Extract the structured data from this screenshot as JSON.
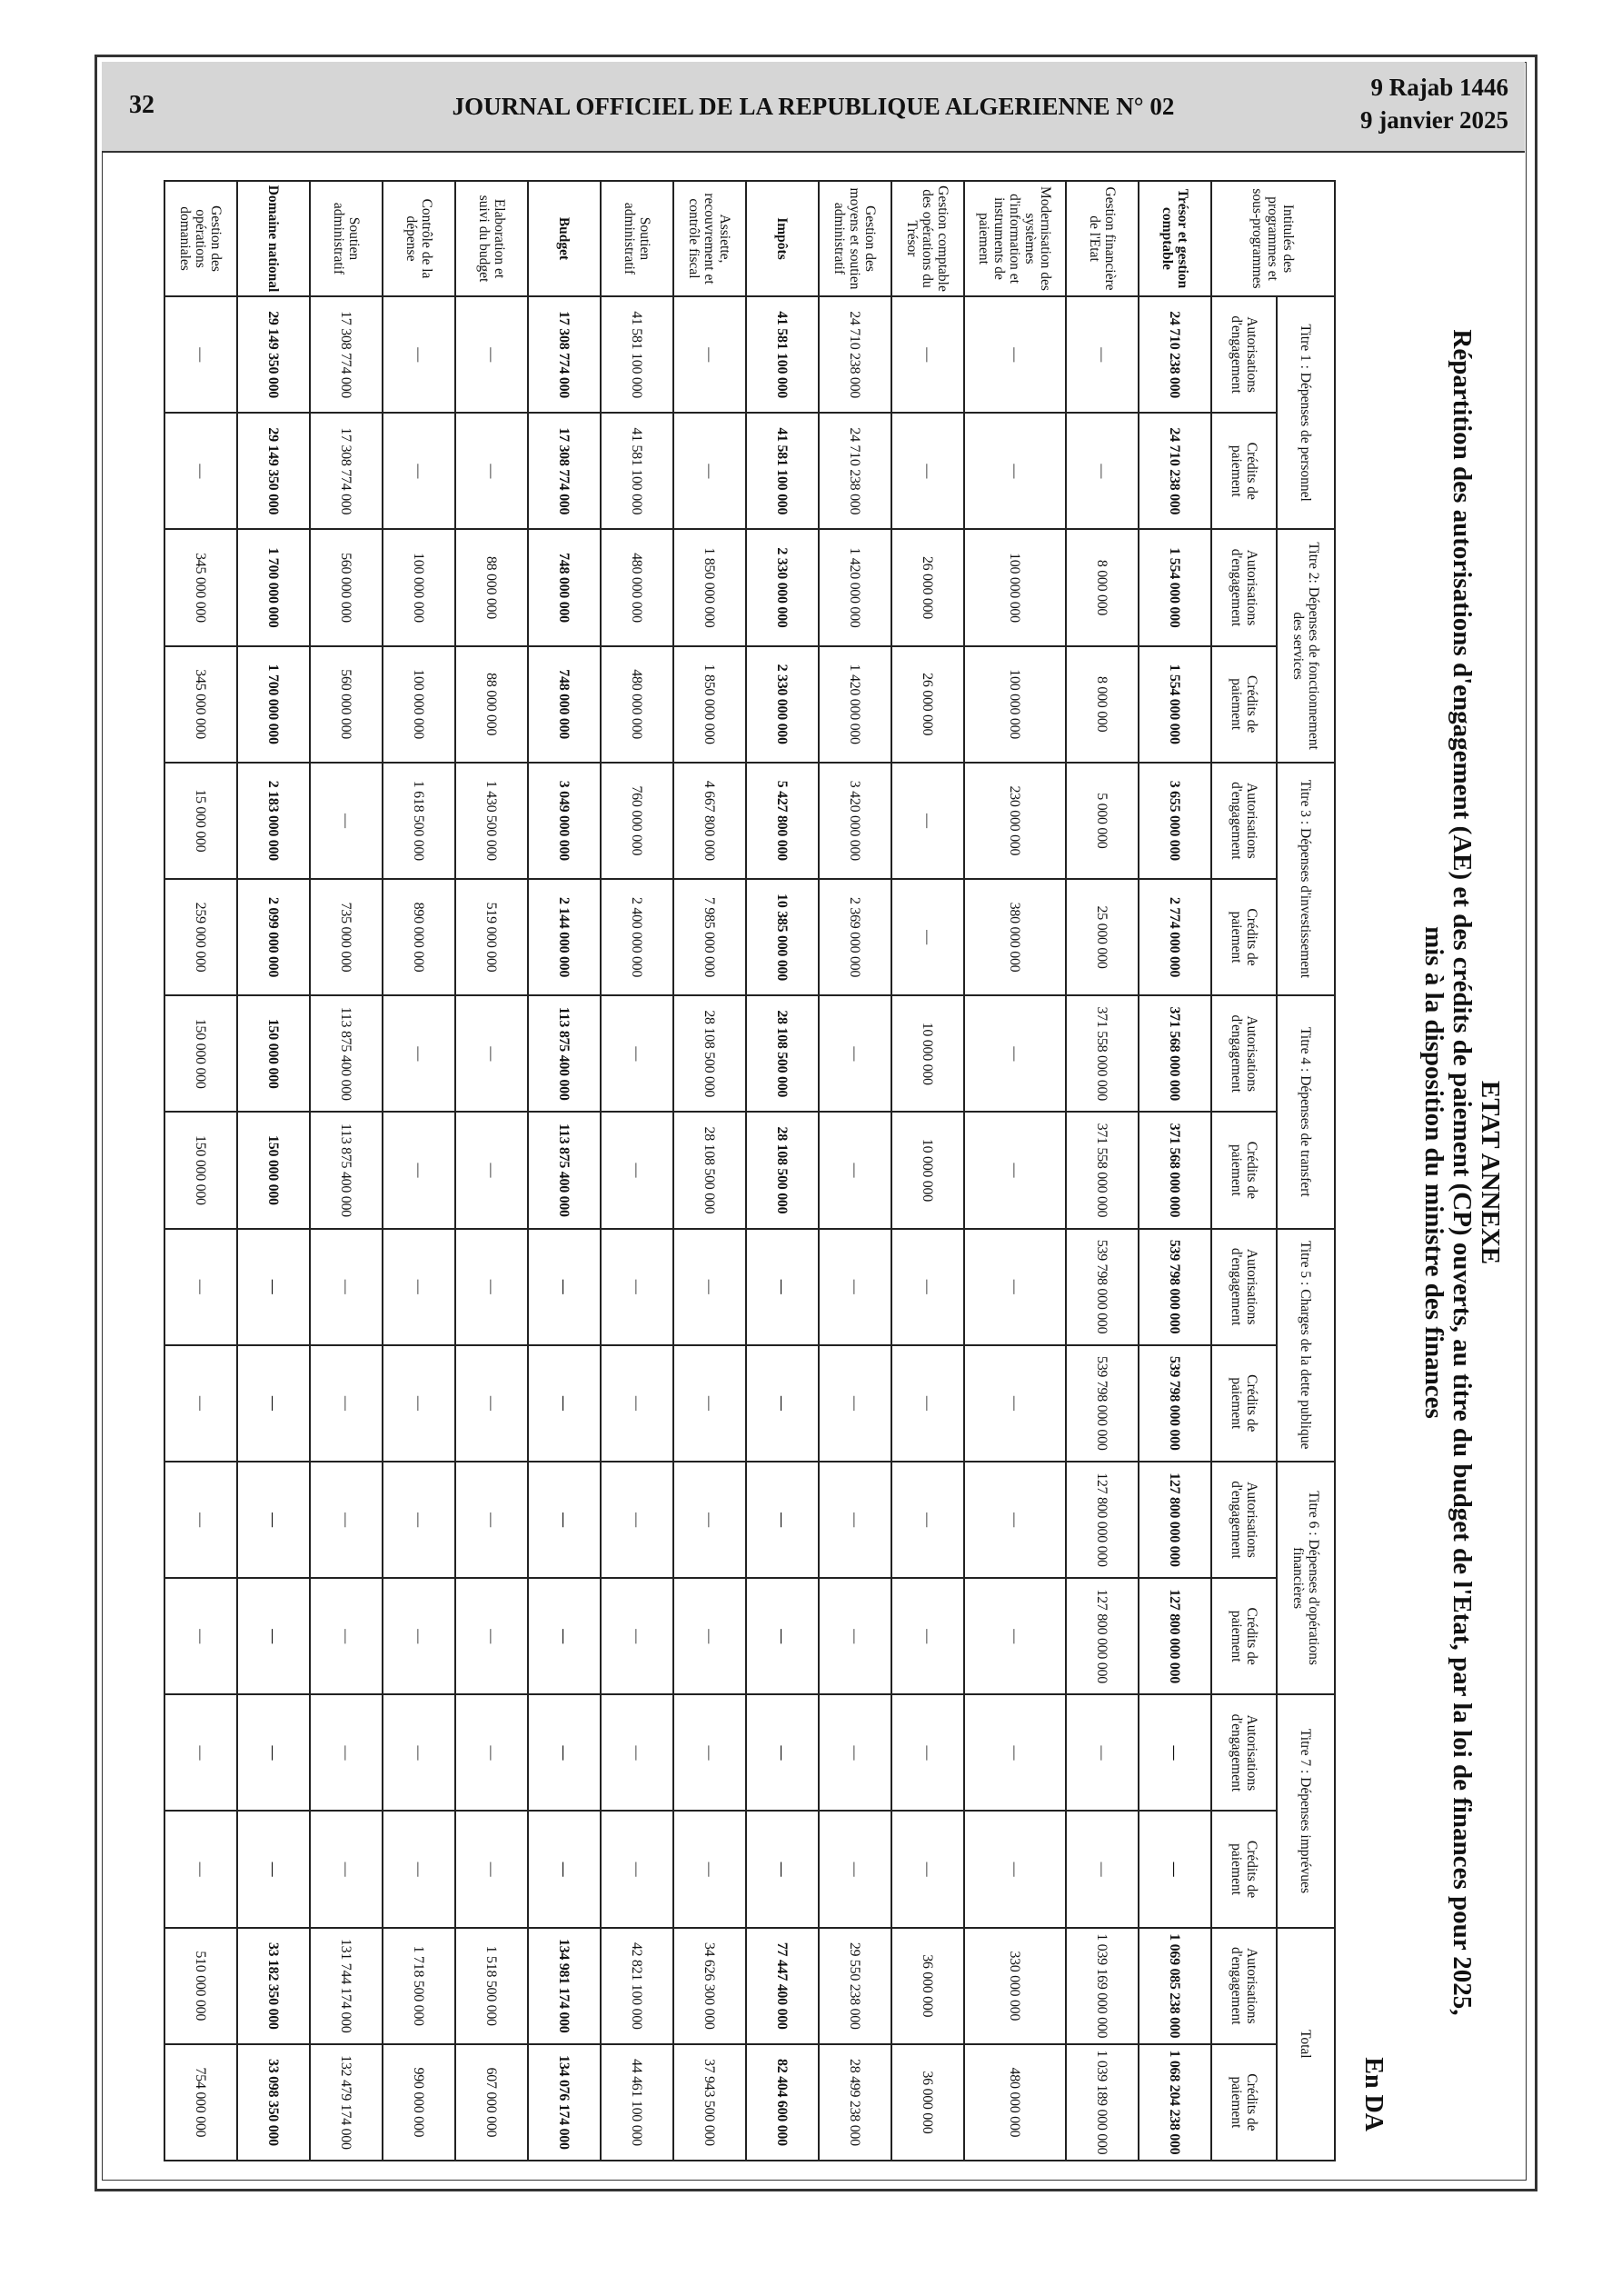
{
  "page_header": {
    "page_number": "32",
    "journal_title": "JOURNAL OFFICIEL DE LA REPUBLIQUE ALGERIENNE N° 02",
    "date_hijri": "9 Rajab 1446",
    "date_gregorian": "9 janvier 2025"
  },
  "annex": {
    "heading": "ETAT ANNEXE",
    "title_line1": "Répartition des autorisations d'engagement (AE) et des crédits de paiement (CP) ouverts, au titre du budget de l'Etat, par la loi de finances pour 2025,",
    "title_line2": "mis à la disposition du ministre des finances",
    "unit": "En DA"
  },
  "table": {
    "label_header": "Intitulés des programmes et sous-programmes",
    "groups": [
      "Titre 1 : Dépenses de personnel",
      "Titre 2: Dépenses de fonctionnement des services",
      "Titre 3 : Dépenses d'investissement",
      "Titre 4 : Dépenses de transfert",
      "Titre 5 : Charges de la dette publique",
      "Titre 6 : Dépenses d'opérations financières",
      "Titre 7 : Dépenses imprévues",
      "Total"
    ],
    "sub_ae": "Autorisations d'engagement",
    "sub_cp": "Crédits de paiement",
    "rows": [
      {
        "label": "Trésor et gestion comptable",
        "bold": true,
        "values": [
          "24 710 238 000",
          "24 710 238 000",
          "1 554 000 000",
          "1 554 000 000",
          "3 655 000 000",
          "2 774 000 000",
          "371 568 000 000",
          "371 568 000 000",
          "539 798 000 000",
          "539 798 000 000",
          "127 800 000 000",
          "127 800 000 000",
          "—",
          "—",
          "1 069 085 238 000",
          "1 068 204 238 000"
        ]
      },
      {
        "label": "Gestion financière de l'Etat",
        "bold": false,
        "values": [
          "—",
          "—",
          "8 000 000",
          "8 000 000",
          "5 000 000",
          "25 000 000",
          "371 558 000 000",
          "371 558 000 000",
          "539 798 000 000",
          "539 798 000 000",
          "127 800 000 000",
          "127 800 000 000",
          "—",
          "—",
          "1 039 169 000 000",
          "1 039 189 000 000"
        ]
      },
      {
        "label": "Modernisation des systèmes d'information et instruments de paiement",
        "bold": false,
        "values": [
          "—",
          "—",
          "100 000 000",
          "100 000 000",
          "230 000 000",
          "380 000 000",
          "—",
          "—",
          "—",
          "—",
          "—",
          "—",
          "—",
          "—",
          "330 000 000",
          "480 000 000"
        ]
      },
      {
        "label": "Gestion comptable des opérations du Trésor",
        "bold": false,
        "values": [
          "—",
          "—",
          "26 000 000",
          "26 000 000",
          "—",
          "—",
          "10 000 000",
          "10 000 000",
          "—",
          "—",
          "—",
          "—",
          "—",
          "—",
          "36 000 000",
          "36 000 000"
        ]
      },
      {
        "label": "Gestion des moyens et soutien administratif",
        "bold": false,
        "values": [
          "24 710 238 000",
          "24 710 238 000",
          "1 420 000 000",
          "1 420 000 000",
          "3 420 000 000",
          "2 369 000 000",
          "—",
          "—",
          "—",
          "—",
          "—",
          "—",
          "—",
          "—",
          "29 550 238 000",
          "28 499 238 000"
        ]
      },
      {
        "label": "Impôts",
        "bold": true,
        "values": [
          "41 581 100 000",
          "41 581 100 000",
          "2 330 000 000",
          "2 330 000 000",
          "5 427 800 000",
          "10 385 000 000",
          "28 108 500 000",
          "28 108 500 000",
          "—",
          "—",
          "—",
          "—",
          "—",
          "—",
          "77 447 400 000",
          "82 404 600 000"
        ]
      },
      {
        "label": "Assiette, recouvrement et contrôle fiscal",
        "bold": false,
        "values": [
          "—",
          "—",
          "1 850 000 000",
          "1 850 000 000",
          "4 667 800 000",
          "7 985 000 000",
          "28 108 500 000",
          "28 108 500 000",
          "—",
          "—",
          "—",
          "—",
          "—",
          "—",
          "34 626 300 000",
          "37 943 500 000"
        ]
      },
      {
        "label": "Soutien administratif",
        "bold": false,
        "values": [
          "41 581 100 000",
          "41 581 100 000",
          "480 000 000",
          "480 000 000",
          "760 000 000",
          "2 400 000 000",
          "—",
          "—",
          "—",
          "—",
          "—",
          "—",
          "—",
          "—",
          "42 821 100 000",
          "44 461 100 000"
        ]
      },
      {
        "label": "Budget",
        "bold": true,
        "values": [
          "17 308 774 000",
          "17 308 774 000",
          "748 000 000",
          "748 000 000",
          "3 049 000 000",
          "2 144 000 000",
          "113 875 400 000",
          "113 875 400 000",
          "—",
          "—",
          "—",
          "—",
          "—",
          "—",
          "134 981 174 000",
          "134 076 174 000"
        ]
      },
      {
        "label": "Elaboration et suivi du budget",
        "bold": false,
        "values": [
          "—",
          "—",
          "88 000 000",
          "88 000 000",
          "1 430 500 000",
          "519 000 000",
          "—",
          "—",
          "—",
          "—",
          "—",
          "—",
          "—",
          "—",
          "1 518 500 000",
          "607 000 000"
        ]
      },
      {
        "label": "Contrôle de la dépense",
        "bold": false,
        "values": [
          "—",
          "—",
          "100 000 000",
          "100 000 000",
          "1 618 500 000",
          "890 000 000",
          "—",
          "—",
          "—",
          "—",
          "—",
          "—",
          "—",
          "—",
          "1 718 500 000",
          "990 000 000"
        ]
      },
      {
        "label": "Soutien administratif",
        "bold": false,
        "values": [
          "17 308 774 000",
          "17 308 774 000",
          "560 000 000",
          "560 000 000",
          "—",
          "735 000 000",
          "113 875 400 000",
          "113 875 400 000",
          "—",
          "—",
          "—",
          "—",
          "—",
          "—",
          "131 744 174 000",
          "132 479 174 000"
        ]
      },
      {
        "label": "Domaine national",
        "bold": true,
        "values": [
          "29 149 350 000",
          "29 149 350 000",
          "1 700 000 000",
          "1 700 000 000",
          "2 183 000 000",
          "2 099 000 000",
          "150 000 000",
          "150 000 000",
          "—",
          "—",
          "—",
          "—",
          "—",
          "—",
          "33 182 350 000",
          "33 098 350 000"
        ]
      },
      {
        "label": "Gestion des opérations domaniales",
        "bold": false,
        "values": [
          "—",
          "—",
          "345 000 000",
          "345 000 000",
          "15 000 000",
          "259 000 000",
          "150 000 000",
          "150 000 000",
          "—",
          "—",
          "—",
          "—",
          "—",
          "—",
          "510 000 000",
          "754 000 000"
        ]
      }
    ]
  }
}
